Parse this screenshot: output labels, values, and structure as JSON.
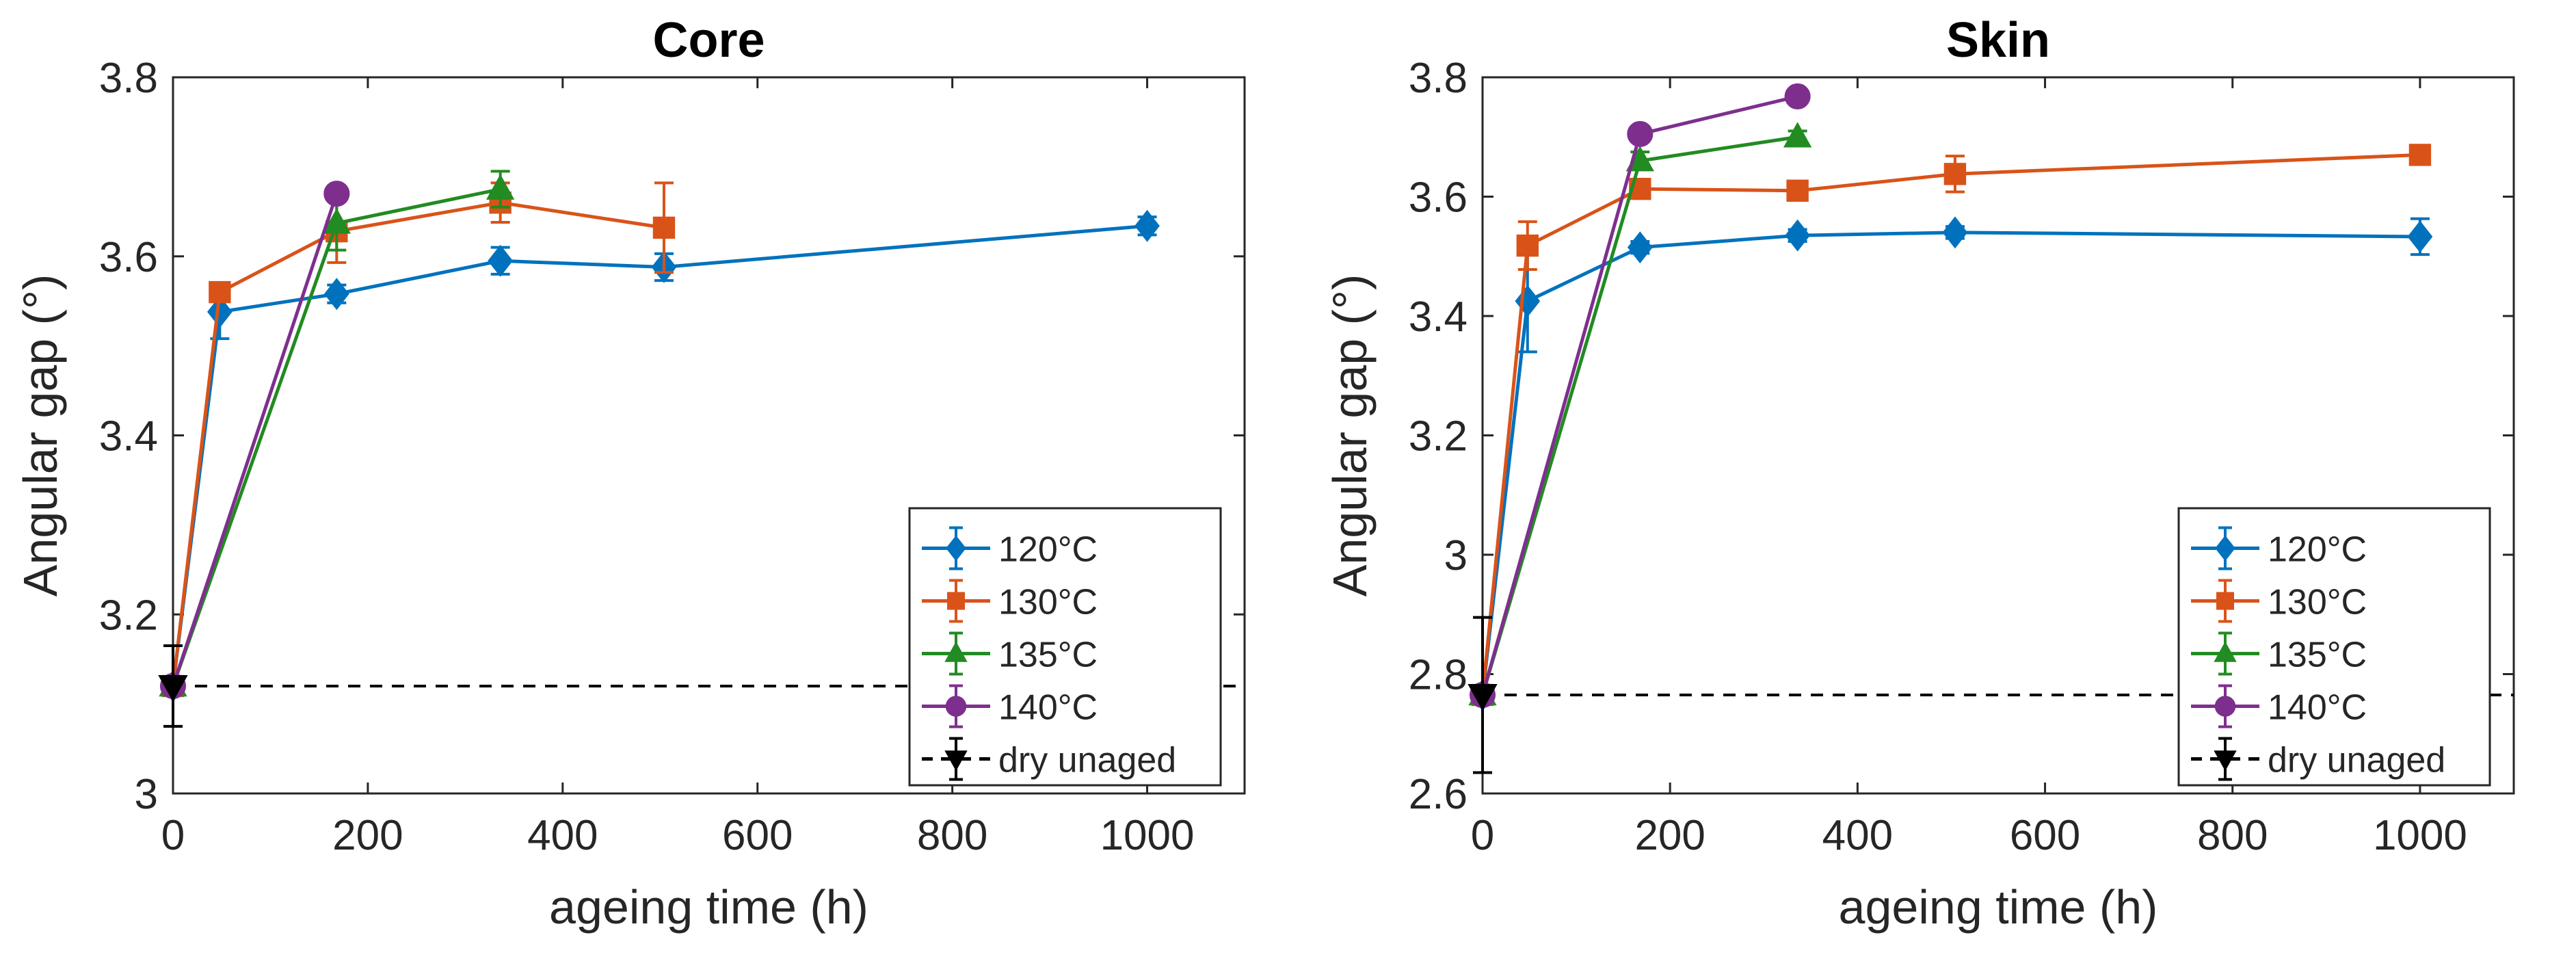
{
  "chart_data": [
    {
      "type": "line",
      "title": "Core",
      "xlabel": "ageing time (h)",
      "ylabel": "Angular gap (°)",
      "xlim": [
        0,
        1100
      ],
      "ylim": [
        3.0,
        3.8
      ],
      "xticks": [
        0,
        200,
        400,
        600,
        800,
        1000
      ],
      "xtick_labels": [
        "0",
        "200",
        "400",
        "600",
        "800",
        "1000"
      ],
      "yticks": [
        3.0,
        3.2,
        3.4,
        3.6,
        3.8
      ],
      "ytick_labels": [
        "3",
        "3.2",
        "3.4",
        "3.6",
        "3.8"
      ],
      "grid": false,
      "legend_position": "bottom-right",
      "series": [
        {
          "name": "120°C",
          "color": "#0072BD",
          "marker": "diamond",
          "x": [
            0,
            48,
            168,
            336,
            504,
            1000
          ],
          "y": [
            3.12,
            3.538,
            3.558,
            3.595,
            3.588,
            3.634
          ],
          "err": [
            0,
            0.03,
            0.01,
            0.015,
            0.015,
            0.01
          ]
        },
        {
          "name": "130°C",
          "color": "#D95319",
          "marker": "square",
          "x": [
            0,
            48,
            168,
            336,
            504
          ],
          "y": [
            3.12,
            3.56,
            3.628,
            3.66,
            3.632
          ],
          "err": [
            0,
            0.01,
            0.035,
            0.022,
            0.05
          ]
        },
        {
          "name": "135°C",
          "color": "#228B22",
          "marker": "triangle-up",
          "x": [
            0,
            168,
            336
          ],
          "y": [
            3.12,
            3.637,
            3.675
          ],
          "err": [
            0,
            0.03,
            0.02
          ]
        },
        {
          "name": "140°C",
          "color": "#7E2F8E",
          "marker": "circle",
          "x": [
            0,
            168
          ],
          "y": [
            3.12,
            3.67
          ],
          "err": [
            0,
            0
          ]
        }
      ],
      "reference": {
        "name": "dry unaged",
        "color": "#000000",
        "marker": "triangle-down",
        "x": 0,
        "y": 3.12,
        "err": 0.045
      }
    },
    {
      "type": "line",
      "title": "Skin",
      "xlabel": "ageing time (h)",
      "ylabel": "Angular gap (°)",
      "xlim": [
        0,
        1100
      ],
      "ylim": [
        2.6,
        3.8
      ],
      "xticks": [
        0,
        200,
        400,
        600,
        800,
        1000
      ],
      "xtick_labels": [
        "0",
        "200",
        "400",
        "600",
        "800",
        "1000"
      ],
      "yticks": [
        2.6,
        2.8,
        3.0,
        3.2,
        3.4,
        3.6,
        3.8
      ],
      "ytick_labels": [
        "2.6",
        "2.8",
        "3",
        "3.2",
        "3.4",
        "3.6",
        "3.8"
      ],
      "grid": false,
      "legend_position": "bottom-right",
      "series": [
        {
          "name": "120°C",
          "color": "#0072BD",
          "marker": "diamond",
          "x": [
            0,
            48,
            168,
            336,
            504,
            1000
          ],
          "y": [
            2.765,
            3.425,
            3.515,
            3.535,
            3.54,
            3.533
          ],
          "err": [
            0,
            0.085,
            0.01,
            0.01,
            0.01,
            0.03
          ]
        },
        {
          "name": "130°C",
          "color": "#D95319",
          "marker": "square",
          "x": [
            0,
            48,
            168,
            336,
            504,
            1000
          ],
          "y": [
            2.765,
            3.518,
            3.613,
            3.61,
            3.638,
            3.67
          ],
          "err": [
            0,
            0.04,
            0.015,
            0.01,
            0.03,
            0.01
          ]
        },
        {
          "name": "135°C",
          "color": "#228B22",
          "marker": "triangle-up",
          "x": [
            0,
            168,
            336
          ],
          "y": [
            2.765,
            3.66,
            3.7
          ],
          "err": [
            0,
            0.015,
            0.01
          ]
        },
        {
          "name": "140°C",
          "color": "#7E2F8E",
          "marker": "circle",
          "x": [
            0,
            168,
            336
          ],
          "y": [
            2.765,
            3.705,
            3.768
          ],
          "err": [
            0,
            0,
            0
          ]
        }
      ],
      "reference": {
        "name": "dry unaged",
        "color": "#000000",
        "marker": "triangle-down",
        "x": 0,
        "y": 2.765,
        "err": 0.13
      }
    }
  ]
}
